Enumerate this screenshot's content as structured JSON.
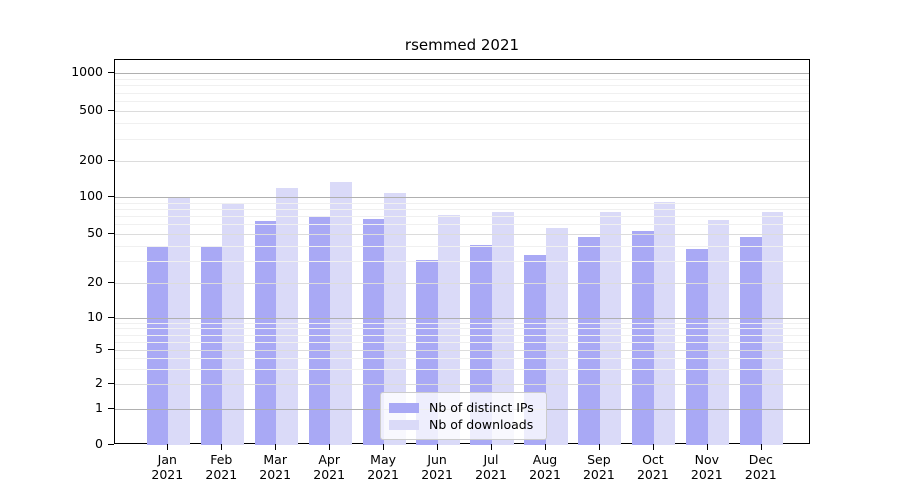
{
  "chart_data": {
    "type": "bar",
    "title": "rsemmed 2021",
    "categories": [
      "Jan 2021",
      "Feb 2021",
      "Mar 2021",
      "Apr 2021",
      "May 2021",
      "Jun 2021",
      "Jul 2021",
      "Aug 2021",
      "Sep 2021",
      "Oct 2021",
      "Nov 2021",
      "Dec 2021"
    ],
    "x_tick_months": [
      "Jan",
      "Feb",
      "Mar",
      "Apr",
      "May",
      "Jun",
      "Jul",
      "Aug",
      "Sep",
      "Oct",
      "Nov",
      "Dec"
    ],
    "x_tick_year": "2021",
    "series": [
      {
        "name": "Nb of distinct IPs",
        "color": "#a9a9f5",
        "values": [
          39,
          40,
          64,
          70,
          66,
          31,
          41,
          34,
          47,
          53,
          38,
          47
        ]
      },
      {
        "name": "Nb of downloads",
        "color": "#dadaf8",
        "values": [
          101,
          90,
          118,
          133,
          108,
          71,
          75,
          56,
          75,
          92,
          65,
          76
        ]
      }
    ],
    "xlabel": "",
    "ylabel": "",
    "y_axis": {
      "scale": "symlog",
      "tick_values": [
        0,
        1,
        2,
        5,
        10,
        20,
        50,
        100,
        200,
        500,
        1000
      ],
      "tick_labels": [
        "0",
        "1",
        "2",
        "5",
        "10",
        "20",
        "50",
        "100",
        "200",
        "500",
        "1000"
      ],
      "ylim": [
        0,
        1300
      ]
    },
    "grid": "on",
    "grid_colors": {
      "major": "#b0b0b0",
      "labeled": "#dcdcdc",
      "minor": "#f0f0f0"
    },
    "minor_grid_values": [
      3,
      4,
      6,
      7,
      8,
      9,
      30,
      40,
      60,
      70,
      80,
      90,
      300,
      400,
      600,
      700,
      800,
      900
    ],
    "legend_position": "lower center"
  }
}
